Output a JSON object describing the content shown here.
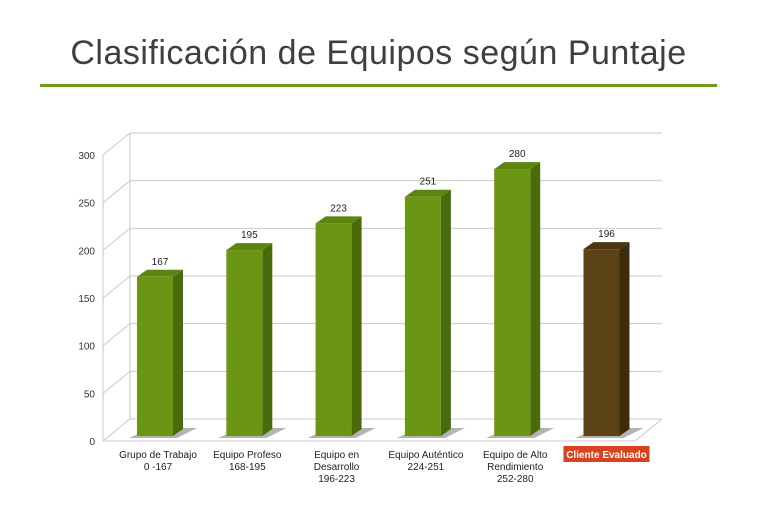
{
  "title": "Clasificación de Equipos según Puntaje",
  "colors": {
    "accent": "#6f9a1c",
    "bar_green": "#6b9614",
    "bar_green_side": "#4a6b0c",
    "bar_green_top": "#5c840f",
    "bar_brown": "#5c4316",
    "bar_brown_side": "#3d2c0c",
    "bar_brown_top": "#4a3510",
    "highlight_label_bg": "#d9421e",
    "grid": "#c9c9c9"
  },
  "chart_data": {
    "type": "bar",
    "categories": [
      [
        "Grupo de Trabajo",
        "0 -167"
      ],
      [
        "Equipo Profeso",
        "168-195"
      ],
      [
        "Equipo en",
        "Desarrollo",
        "196-223"
      ],
      [
        "Equipo Auténtico",
        "224-251"
      ],
      [
        "Equipo de Alto",
        "Rendimiento",
        "252-280"
      ],
      [
        "Cliente Evaluado"
      ]
    ],
    "values": [
      167,
      195,
      223,
      251,
      280,
      196
    ],
    "highlight_index": 5,
    "ylim": [
      0,
      300
    ],
    "yticks": [
      0,
      50,
      100,
      150,
      200,
      250,
      300
    ],
    "grid": true,
    "title": "",
    "xlabel": "",
    "ylabel": ""
  }
}
